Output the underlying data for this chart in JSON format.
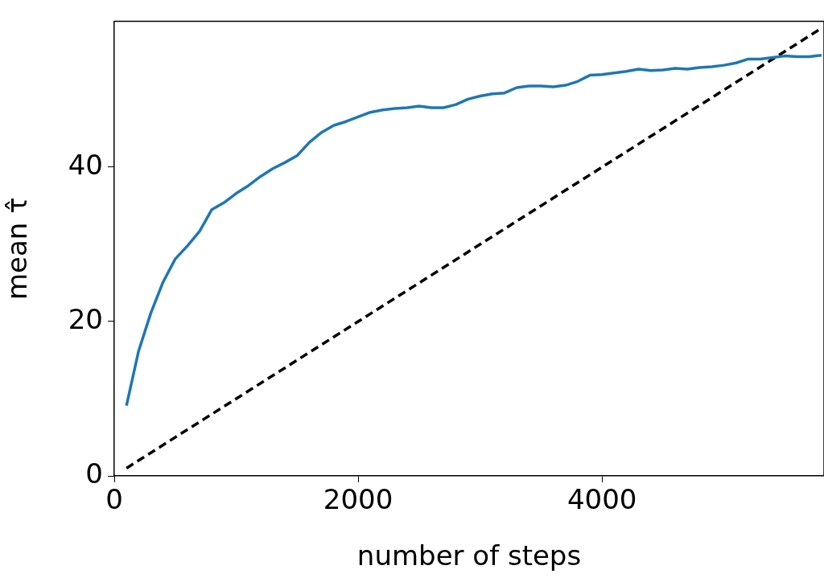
{
  "chart_data": {
    "type": "line",
    "xlabel": "number of steps",
    "ylabel": "mean τ̂",
    "xlim": [
      0,
      5820
    ],
    "ylim": [
      0,
      58.9
    ],
    "xticks": [
      0,
      2000,
      4000
    ],
    "yticks": [
      0,
      20,
      40
    ],
    "grid": false,
    "legend": false,
    "marker": "none",
    "x": [
      100,
      200,
      300,
      400,
      500,
      600,
      700,
      800,
      900,
      1000,
      1100,
      1200,
      1300,
      1400,
      1500,
      1600,
      1700,
      1800,
      1900,
      2000,
      2100,
      2200,
      2300,
      2400,
      2500,
      2600,
      2700,
      2800,
      2900,
      3000,
      3100,
      3200,
      3300,
      3400,
      3500,
      3600,
      3700,
      3800,
      3900,
      4000,
      4100,
      4200,
      4300,
      4400,
      4500,
      4600,
      4700,
      4800,
      4900,
      5000,
      5100,
      5200,
      5300,
      5400,
      5500,
      5600,
      5700,
      5800
    ],
    "series": [
      {
        "color": "#1f77b4",
        "line_style": "solid",
        "values": [
          9.1,
          16.2,
          21.1,
          25.1,
          28.1,
          29.8,
          31.7,
          34.5,
          35.4,
          36.6,
          37.6,
          38.8,
          39.8,
          40.6,
          41.5,
          43.2,
          44.5,
          45.4,
          45.9,
          46.5,
          47.1,
          47.4,
          47.6,
          47.7,
          47.9,
          47.7,
          47.7,
          48.1,
          48.8,
          49.2,
          49.5,
          49.6,
          50.3,
          50.5,
          50.5,
          50.4,
          50.6,
          51.1,
          51.9,
          52.0,
          52.2,
          52.4,
          52.7,
          52.5,
          52.6,
          52.8,
          52.7,
          52.9,
          53.0,
          53.2,
          53.5,
          54.0,
          54.0,
          54.2,
          54.4,
          54.3,
          54.3,
          54.5
        ]
      },
      {
        "type": "line",
        "color": "#000000",
        "line_style": "dashed",
        "x": [
          100,
          5800
        ],
        "values": [
          1,
          58
        ]
      }
    ]
  }
}
